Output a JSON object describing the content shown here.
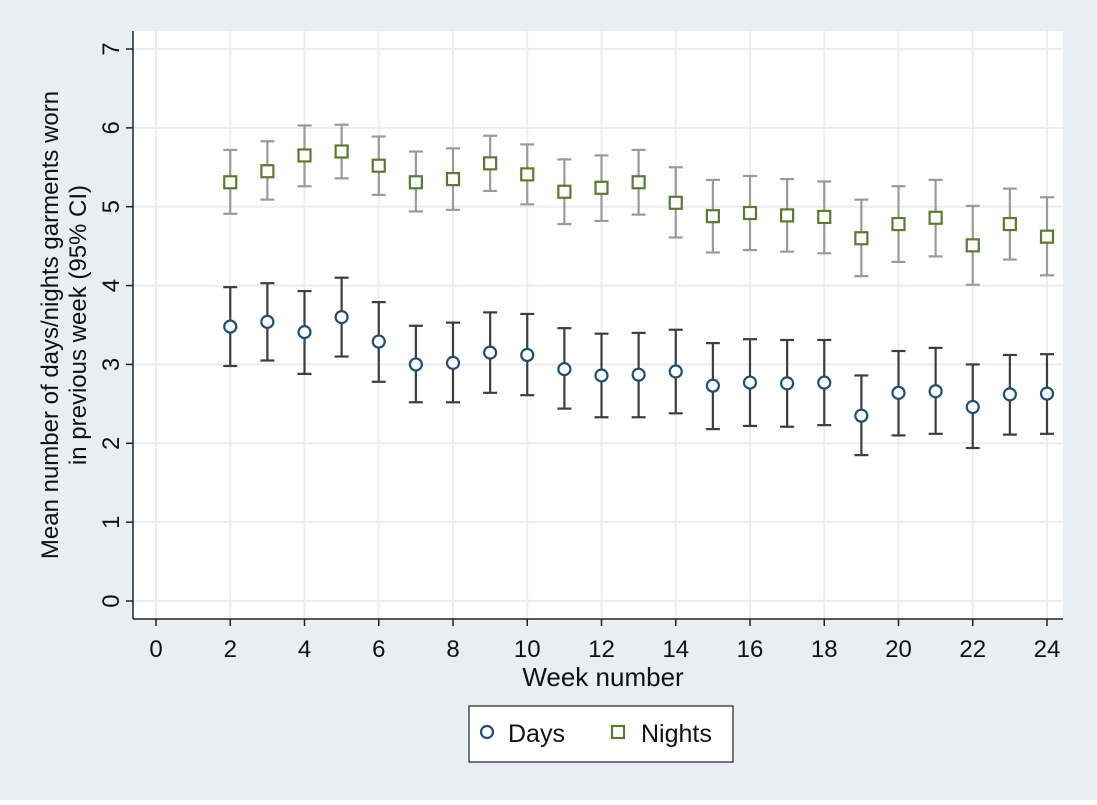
{
  "chart_data": {
    "type": "scatter",
    "title": "",
    "xlabel": "Week number",
    "ylabel_lines": [
      "Mean number of days/nights garments worn",
      "in previous week (95% CI)"
    ],
    "xlim": [
      0,
      24
    ],
    "ylim": [
      0,
      7
    ],
    "xticks": [
      0,
      2,
      4,
      6,
      8,
      10,
      12,
      14,
      16,
      18,
      20,
      22,
      24
    ],
    "yticks": [
      0,
      1,
      2,
      3,
      4,
      5,
      6,
      7
    ],
    "grid": true,
    "legend_position": "bottom",
    "colors": {
      "outer_background": "#e8eef3",
      "plot_background": "#ffffff",
      "grid": "#e8eef3"
    },
    "series": [
      {
        "name": "Days",
        "marker": "circle",
        "color": "#1f4e79",
        "ci_color": "#3d3d3d",
        "x": [
          2,
          3,
          4,
          5,
          6,
          7,
          8,
          9,
          10,
          11,
          12,
          13,
          14,
          15,
          16,
          17,
          18,
          19,
          20,
          21,
          22,
          23,
          24
        ],
        "y": [
          3.48,
          3.54,
          3.41,
          3.6,
          3.29,
          3.0,
          3.02,
          3.15,
          3.12,
          2.94,
          2.86,
          2.87,
          2.91,
          2.73,
          2.77,
          2.76,
          2.77,
          2.35,
          2.64,
          2.66,
          2.46,
          2.62,
          2.63
        ],
        "lower": [
          2.98,
          3.05,
          2.88,
          3.1,
          2.78,
          2.52,
          2.52,
          2.64,
          2.61,
          2.44,
          2.33,
          2.33,
          2.38,
          2.18,
          2.22,
          2.21,
          2.23,
          1.85,
          2.1,
          2.12,
          1.94,
          2.11,
          2.12
        ],
        "upper": [
          3.98,
          4.03,
          3.93,
          4.1,
          3.79,
          3.49,
          3.53,
          3.66,
          3.64,
          3.46,
          3.39,
          3.4,
          3.44,
          3.27,
          3.32,
          3.31,
          3.31,
          2.86,
          3.17,
          3.21,
          3.0,
          3.12,
          3.13
        ]
      },
      {
        "name": "Nights",
        "marker": "square",
        "color": "#5a7a2e",
        "ci_color": "#9a9a9a",
        "x": [
          2,
          3,
          4,
          5,
          6,
          7,
          8,
          9,
          10,
          11,
          12,
          13,
          14,
          15,
          16,
          17,
          18,
          19,
          20,
          21,
          22,
          23,
          24
        ],
        "y": [
          5.31,
          5.45,
          5.65,
          5.7,
          5.52,
          5.31,
          5.35,
          5.55,
          5.41,
          5.19,
          5.24,
          5.31,
          5.05,
          4.88,
          4.92,
          4.89,
          4.87,
          4.6,
          4.78,
          4.86,
          4.51,
          4.78,
          4.62
        ],
        "lower": [
          4.91,
          5.09,
          5.26,
          5.36,
          5.15,
          4.94,
          4.96,
          5.2,
          5.03,
          4.78,
          4.82,
          4.9,
          4.61,
          4.42,
          4.45,
          4.43,
          4.41,
          4.12,
          4.3,
          4.37,
          4.01,
          4.33,
          4.13
        ],
        "upper": [
          5.72,
          5.83,
          6.03,
          6.04,
          5.89,
          5.7,
          5.74,
          5.9,
          5.79,
          5.6,
          5.65,
          5.72,
          5.5,
          5.34,
          5.39,
          5.35,
          5.32,
          5.09,
          5.26,
          5.34,
          5.01,
          5.23,
          5.12
        ]
      }
    ]
  }
}
